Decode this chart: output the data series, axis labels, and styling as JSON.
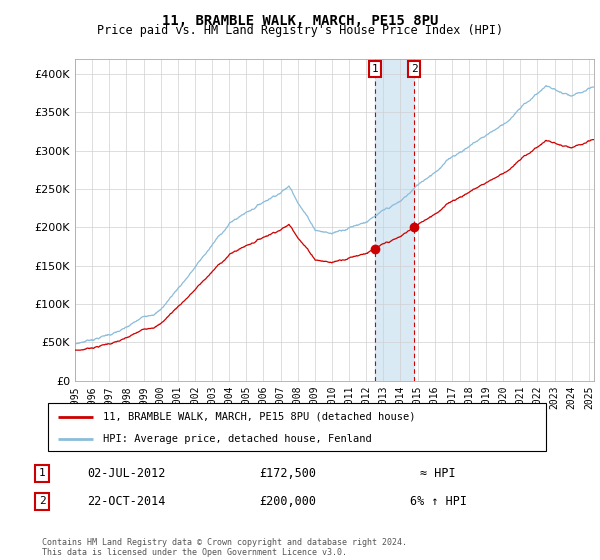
{
  "title": "11, BRAMBLE WALK, MARCH, PE15 8PU",
  "subtitle": "Price paid vs. HM Land Registry's House Price Index (HPI)",
  "yticks": [
    0,
    50000,
    100000,
    150000,
    200000,
    250000,
    300000,
    350000,
    400000
  ],
  "ylim": [
    0,
    420000
  ],
  "xlim": [
    1995,
    2025.3
  ],
  "legend_line1": "11, BRAMBLE WALK, MARCH, PE15 8PU (detached house)",
  "legend_line2": "HPI: Average price, detached house, Fenland",
  "annotation1_date": "02-JUL-2012",
  "annotation1_price": "£172,500",
  "annotation1_hpi": "≈ HPI",
  "annotation2_date": "22-OCT-2014",
  "annotation2_price": "£200,000",
  "annotation2_hpi": "6% ↑ HPI",
  "footer": "Contains HM Land Registry data © Crown copyright and database right 2024.\nThis data is licensed under the Open Government Licence v3.0.",
  "hpi_color": "#8bbcdb",
  "property_color": "#cc0000",
  "shade_color": "#daeaf5",
  "vline_color": "#cc0000",
  "purchase1_year": 2012.5,
  "purchase2_year": 2014.8,
  "purchase1_price": 172500,
  "purchase2_price": 200000
}
